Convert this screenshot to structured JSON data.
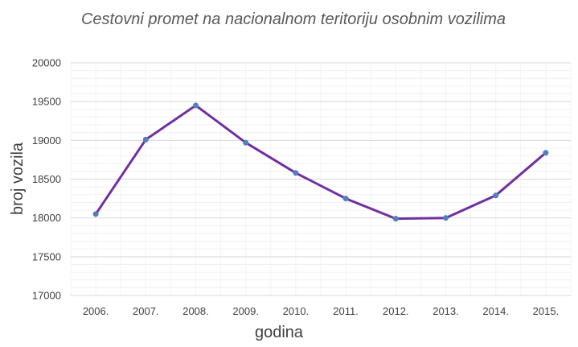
{
  "chart_data": {
    "type": "line",
    "title": "Cestovni promet na nacionalnom teritoriju osobnim vozilima",
    "xlabel": "godina",
    "ylabel": "broj vozila",
    "categories": [
      "2006.",
      "2007.",
      "2008.",
      "2009.",
      "2010.",
      "2011.",
      "2012.",
      "2013.",
      "2014.",
      "2015."
    ],
    "series": [
      {
        "values": [
          18050,
          19010,
          19450,
          18970,
          18580,
          18250,
          17990,
          18000,
          18290,
          18840
        ],
        "color": "#7030A0",
        "marker_color": "#4F81BD"
      }
    ],
    "ylim": [
      17000,
      20000
    ],
    "yticks": [
      17000,
      17500,
      18000,
      18500,
      19000,
      19500,
      20000
    ],
    "grid": true,
    "minor_grid": true,
    "legend": "none"
  }
}
